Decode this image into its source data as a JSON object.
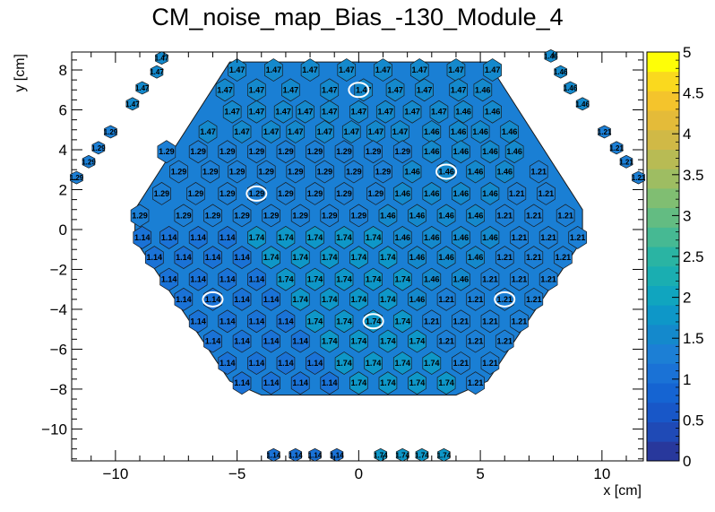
{
  "chart_data": {
    "type": "heatmap",
    "title": "CM_noise_map_Bias_-130_Module_4",
    "xlabel": "x [cm]",
    "ylabel": "y [cm]",
    "xlim": [
      -11.8,
      11.7
    ],
    "ylim": [
      -11.6,
      8.9
    ],
    "xticks": [
      -10,
      -5,
      0,
      5,
      10
    ],
    "yticks": [
      -10,
      -8,
      -6,
      -4,
      -2,
      0,
      2,
      4,
      6,
      8
    ],
    "zlim": [
      0,
      5
    ],
    "zticks": [
      "0",
      "0.5",
      "1",
      "1.5",
      "2",
      "2.5",
      "3",
      "3.5",
      "4",
      "4.5",
      "5"
    ],
    "grid": false,
    "colorbar": "right",
    "colorscale": [
      "#28389c",
      "#1f4ab6",
      "#1857c8",
      "#1564d2",
      "#1a72d6",
      "#1c7fd5",
      "#1489cc",
      "#0e97c8",
      "#10a5bf",
      "#1aaeb1",
      "#2ab4a3",
      "#46b993",
      "#63bc82",
      "#80be72",
      "#9ebd62",
      "#b8bb54",
      "#d0b946",
      "#e4bb39",
      "#f4c42c",
      "#fad91e",
      "#fefe07"
    ],
    "rows": [
      {
        "y": 8.0,
        "cells": [
          {
            "x": -5.0,
            "v": 1.47
          },
          {
            "x": -3.5,
            "v": 1.47
          },
          {
            "x": -2.0,
            "v": 1.47
          },
          {
            "x": -0.5,
            "v": 1.47
          },
          {
            "x": 1.0,
            "v": 1.47
          },
          {
            "x": 2.5,
            "v": 1.47
          },
          {
            "x": 4.0,
            "v": 1.47
          },
          {
            "x": 5.5,
            "v": 1.47
          }
        ]
      },
      {
        "y": 7.0,
        "cells": [
          {
            "x": -5.5,
            "v": 1.47
          },
          {
            "x": -4.2,
            "v": 1.47
          },
          {
            "x": -2.8,
            "v": 1.47
          },
          {
            "x": -1.2,
            "v": 1.47
          },
          {
            "x": 0.2,
            "v": 1.47
          },
          {
            "x": 1.5,
            "v": 1.47
          },
          {
            "x": 2.7,
            "v": 1.47
          },
          {
            "x": 4.1,
            "v": 1.47
          },
          {
            "x": 5.1,
            "v": 1.46
          }
        ]
      },
      {
        "y": 5.9,
        "cells": [
          {
            "x": -5.2,
            "v": 1.47
          },
          {
            "x": -4.2,
            "v": 1.47
          },
          {
            "x": -3.1,
            "v": 1.47
          },
          {
            "x": -2.2,
            "v": 1.47
          },
          {
            "x": -1.2,
            "v": 1.47
          },
          {
            "x": 0.0,
            "v": 1.47
          },
          {
            "x": 1.1,
            "v": 1.47
          },
          {
            "x": 2.2,
            "v": 1.47
          },
          {
            "x": 3.3,
            "v": 1.47
          },
          {
            "x": 4.3,
            "v": 1.46
          },
          {
            "x": 5.5,
            "v": 1.46
          }
        ]
      },
      {
        "y": 4.9,
        "cells": [
          {
            "x": -6.2,
            "v": 1.47
          },
          {
            "x": -4.8,
            "v": 1.47
          },
          {
            "x": -3.6,
            "v": 1.47
          },
          {
            "x": -2.6,
            "v": 1.47
          },
          {
            "x": -1.4,
            "v": 1.47
          },
          {
            "x": -0.3,
            "v": 1.47
          },
          {
            "x": 0.7,
            "v": 1.47
          },
          {
            "x": 1.7,
            "v": 1.47
          },
          {
            "x": 3.0,
            "v": 1.46
          },
          {
            "x": 4.1,
            "v": 1.46
          },
          {
            "x": 5.0,
            "v": 1.46
          },
          {
            "x": 6.2,
            "v": 1.46
          }
        ]
      },
      {
        "y": 3.9,
        "cells": [
          {
            "x": -7.9,
            "v": 1.29
          },
          {
            "x": -6.6,
            "v": 1.29
          },
          {
            "x": -5.4,
            "v": 1.29
          },
          {
            "x": -4.2,
            "v": 1.29
          },
          {
            "x": -3.0,
            "v": 1.29
          },
          {
            "x": -1.8,
            "v": 1.29
          },
          {
            "x": -0.6,
            "v": 1.29
          },
          {
            "x": 0.6,
            "v": 1.29
          },
          {
            "x": 1.8,
            "v": 1.29
          },
          {
            "x": 3.0,
            "v": 1.46
          },
          {
            "x": 4.2,
            "v": 1.46
          },
          {
            "x": 5.4,
            "v": 1.46
          },
          {
            "x": 6.4,
            "v": 1.46
          }
        ]
      },
      {
        "y": 2.9,
        "cells": [
          {
            "x": -7.4,
            "v": 1.29
          },
          {
            "x": -6.1,
            "v": 1.29
          },
          {
            "x": -5.0,
            "v": 1.29
          },
          {
            "x": -3.8,
            "v": 1.29
          },
          {
            "x": -2.6,
            "v": 1.29
          },
          {
            "x": -1.4,
            "v": 1.29
          },
          {
            "x": -0.2,
            "v": 1.29
          },
          {
            "x": 1.0,
            "v": 1.29
          },
          {
            "x": 2.2,
            "v": 1.46
          },
          {
            "x": 3.6,
            "v": 1.46
          },
          {
            "x": 4.8,
            "v": 1.46
          },
          {
            "x": 6.0,
            "v": 1.46
          },
          {
            "x": 7.4,
            "v": 1.21
          }
        ]
      },
      {
        "y": 1.8,
        "cells": [
          {
            "x": -8.1,
            "v": 1.29
          },
          {
            "x": -6.7,
            "v": 1.29
          },
          {
            "x": -5.4,
            "v": 1.29
          },
          {
            "x": -4.2,
            "v": 1.29
          },
          {
            "x": -3.0,
            "v": 1.29
          },
          {
            "x": -1.8,
            "v": 1.29
          },
          {
            "x": -0.6,
            "v": 1.29
          },
          {
            "x": 0.7,
            "v": 1.29
          },
          {
            "x": 1.8,
            "v": 1.46
          },
          {
            "x": 3.0,
            "v": 1.46
          },
          {
            "x": 4.2,
            "v": 1.46
          },
          {
            "x": 5.4,
            "v": 1.46
          },
          {
            "x": 6.5,
            "v": 1.21
          },
          {
            "x": 7.7,
            "v": 1.21
          }
        ]
      },
      {
        "y": 0.7,
        "cells": [
          {
            "x": -9.0,
            "v": 1.29
          },
          {
            "x": -7.2,
            "v": 1.29
          },
          {
            "x": -6.0,
            "v": 1.29
          },
          {
            "x": -4.8,
            "v": 1.29
          },
          {
            "x": -3.6,
            "v": 1.29
          },
          {
            "x": -2.4,
            "v": 1.29
          },
          {
            "x": -1.2,
            "v": 1.29
          },
          {
            "x": 0.0,
            "v": 1.29
          },
          {
            "x": 1.2,
            "v": 1.46
          },
          {
            "x": 2.4,
            "v": 1.46
          },
          {
            "x": 3.6,
            "v": 1.46
          },
          {
            "x": 4.8,
            "v": 1.46
          },
          {
            "x": 6.0,
            "v": 1.21
          },
          {
            "x": 7.2,
            "v": 1.21
          },
          {
            "x": 8.5,
            "v": 1.21
          }
        ]
      },
      {
        "y": -0.4,
        "cells": [
          {
            "x": -8.9,
            "v": 1.14
          },
          {
            "x": -7.8,
            "v": 1.14
          },
          {
            "x": -6.6,
            "v": 1.14
          },
          {
            "x": -5.4,
            "v": 1.14
          },
          {
            "x": -4.2,
            "v": 1.74
          },
          {
            "x": -3.0,
            "v": 1.74
          },
          {
            "x": -1.8,
            "v": 1.74
          },
          {
            "x": -0.6,
            "v": 1.74
          },
          {
            "x": 0.6,
            "v": 1.74
          },
          {
            "x": 1.8,
            "v": 1.46
          },
          {
            "x": 3.0,
            "v": 1.46
          },
          {
            "x": 4.2,
            "v": 1.46
          },
          {
            "x": 5.4,
            "v": 1.46
          },
          {
            "x": 6.6,
            "v": 1.21
          },
          {
            "x": 7.8,
            "v": 1.21
          },
          {
            "x": 9.0,
            "v": 1.21
          }
        ]
      },
      {
        "y": -1.4,
        "cells": [
          {
            "x": -8.4,
            "v": 1.14
          },
          {
            "x": -7.2,
            "v": 1.14
          },
          {
            "x": -6.0,
            "v": 1.14
          },
          {
            "x": -4.8,
            "v": 1.14
          },
          {
            "x": -3.6,
            "v": 1.74
          },
          {
            "x": -2.4,
            "v": 1.74
          },
          {
            "x": -1.2,
            "v": 1.74
          },
          {
            "x": 0.0,
            "v": 1.74
          },
          {
            "x": 1.2,
            "v": 1.74
          },
          {
            "x": 2.4,
            "v": 1.46
          },
          {
            "x": 3.6,
            "v": 1.46
          },
          {
            "x": 4.8,
            "v": 1.46
          },
          {
            "x": 6.0,
            "v": 1.21
          },
          {
            "x": 7.2,
            "v": 1.21
          },
          {
            "x": 8.4,
            "v": 1.21
          }
        ]
      },
      {
        "y": -2.5,
        "cells": [
          {
            "x": -7.8,
            "v": 1.14
          },
          {
            "x": -6.6,
            "v": 1.14
          },
          {
            "x": -5.4,
            "v": 1.14
          },
          {
            "x": -4.2,
            "v": 1.14
          },
          {
            "x": -3.0,
            "v": 1.74
          },
          {
            "x": -1.8,
            "v": 1.74
          },
          {
            "x": -0.6,
            "v": 1.74
          },
          {
            "x": 0.6,
            "v": 1.74
          },
          {
            "x": 1.8,
            "v": 1.74
          },
          {
            "x": 3.0,
            "v": 1.46
          },
          {
            "x": 4.2,
            "v": 1.46
          },
          {
            "x": 5.4,
            "v": 1.21
          },
          {
            "x": 6.6,
            "v": 1.21
          },
          {
            "x": 7.8,
            "v": 1.21
          }
        ]
      },
      {
        "y": -3.5,
        "cells": [
          {
            "x": -7.2,
            "v": 1.14
          },
          {
            "x": -6.0,
            "v": 1.14
          },
          {
            "x": -4.8,
            "v": 1.14
          },
          {
            "x": -3.6,
            "v": 1.14
          },
          {
            "x": -2.4,
            "v": 1.74
          },
          {
            "x": -1.2,
            "v": 1.74
          },
          {
            "x": 0.0,
            "v": 1.74
          },
          {
            "x": 1.2,
            "v": 1.74
          },
          {
            "x": 2.4,
            "v": 1.46
          },
          {
            "x": 3.6,
            "v": 1.21
          },
          {
            "x": 4.8,
            "v": 1.21
          },
          {
            "x": 6.0,
            "v": 1.21
          },
          {
            "x": 7.2,
            "v": 1.21
          }
        ]
      },
      {
        "y": -4.6,
        "cells": [
          {
            "x": -6.6,
            "v": 1.14
          },
          {
            "x": -5.4,
            "v": 1.14
          },
          {
            "x": -4.2,
            "v": 1.14
          },
          {
            "x": -3.0,
            "v": 1.14
          },
          {
            "x": -1.8,
            "v": 1.74
          },
          {
            "x": -0.6,
            "v": 1.74
          },
          {
            "x": 0.6,
            "v": 1.74
          },
          {
            "x": 1.8,
            "v": 1.74
          },
          {
            "x": 3.0,
            "v": 1.21
          },
          {
            "x": 4.2,
            "v": 1.21
          },
          {
            "x": 5.4,
            "v": 1.21
          },
          {
            "x": 6.6,
            "v": 1.21
          }
        ]
      },
      {
        "y": -5.6,
        "cells": [
          {
            "x": -6.0,
            "v": 1.14
          },
          {
            "x": -4.8,
            "v": 1.14
          },
          {
            "x": -3.6,
            "v": 1.14
          },
          {
            "x": -2.4,
            "v": 1.14
          },
          {
            "x": -1.2,
            "v": 1.74
          },
          {
            "x": 0.0,
            "v": 1.74
          },
          {
            "x": 1.2,
            "v": 1.74
          },
          {
            "x": 2.4,
            "v": 1.74
          },
          {
            "x": 3.6,
            "v": 1.21
          },
          {
            "x": 4.8,
            "v": 1.21
          },
          {
            "x": 6.0,
            "v": 1.21
          }
        ]
      },
      {
        "y": -6.7,
        "cells": [
          {
            "x": -5.4,
            "v": 1.14
          },
          {
            "x": -4.2,
            "v": 1.14
          },
          {
            "x": -3.0,
            "v": 1.14
          },
          {
            "x": -1.8,
            "v": 1.14
          },
          {
            "x": -0.6,
            "v": 1.74
          },
          {
            "x": 0.6,
            "v": 1.74
          },
          {
            "x": 1.8,
            "v": 1.74
          },
          {
            "x": 3.0,
            "v": 1.74
          },
          {
            "x": 4.2,
            "v": 1.21
          },
          {
            "x": 5.4,
            "v": 1.21
          }
        ]
      },
      {
        "y": -7.7,
        "cells": [
          {
            "x": -4.8,
            "v": 1.14
          },
          {
            "x": -3.6,
            "v": 1.14
          },
          {
            "x": -2.4,
            "v": 1.14
          },
          {
            "x": -1.2,
            "v": 1.14
          },
          {
            "x": 0.0,
            "v": 1.74
          },
          {
            "x": 1.2,
            "v": 1.74
          },
          {
            "x": 2.4,
            "v": 1.74
          },
          {
            "x": 3.6,
            "v": 1.74
          },
          {
            "x": 4.8,
            "v": 1.21
          }
        ]
      }
    ],
    "marked": [
      {
        "x": 0.0,
        "y": 7.0
      },
      {
        "x": -4.2,
        "y": 1.8
      },
      {
        "x": 3.6,
        "y": 2.9
      },
      {
        "x": -6.0,
        "y": -3.5
      },
      {
        "x": 6.0,
        "y": -3.5
      },
      {
        "x": 0.6,
        "y": -4.6
      }
    ],
    "outer": [
      {
        "x": -8.1,
        "y": 8.6,
        "v": 1.47
      },
      {
        "x": -8.3,
        "y": 7.9,
        "v": 1.47
      },
      {
        "x": -8.9,
        "y": 7.1,
        "v": 1.47
      },
      {
        "x": -9.3,
        "y": 6.3,
        "v": 1.47
      },
      {
        "x": -10.2,
        "y": 4.9,
        "v": 1.29
      },
      {
        "x": -10.7,
        "y": 4.1,
        "v": 1.29
      },
      {
        "x": -11.1,
        "y": 3.4,
        "v": 1.29
      },
      {
        "x": -11.6,
        "y": 2.6,
        "v": 1.29
      },
      {
        "x": 7.9,
        "y": 8.7,
        "v": 1.46
      },
      {
        "x": 8.3,
        "y": 7.9,
        "v": 1.46
      },
      {
        "x": 8.7,
        "y": 7.1,
        "v": 1.46
      },
      {
        "x": 9.2,
        "y": 6.3,
        "v": 1.46
      },
      {
        "x": 10.1,
        "y": 4.9,
        "v": 1.21
      },
      {
        "x": 10.6,
        "y": 4.1,
        "v": 1.21
      },
      {
        "x": 11.0,
        "y": 3.4,
        "v": 1.21
      },
      {
        "x": 11.5,
        "y": 2.6,
        "v": 1.21
      },
      {
        "x": -3.5,
        "y": -11.3,
        "v": 1.14
      },
      {
        "x": -2.6,
        "y": -11.3,
        "v": 1.14
      },
      {
        "x": -1.8,
        "y": -11.3,
        "v": 1.14
      },
      {
        "x": -0.9,
        "y": -11.3,
        "v": 1.14
      },
      {
        "x": 0.9,
        "y": -11.3,
        "v": 1.74
      },
      {
        "x": 1.8,
        "y": -11.3,
        "v": 1.74
      },
      {
        "x": 2.6,
        "y": -11.3,
        "v": 1.74
      },
      {
        "x": 3.5,
        "y": -11.3,
        "v": 1.74
      }
    ]
  }
}
